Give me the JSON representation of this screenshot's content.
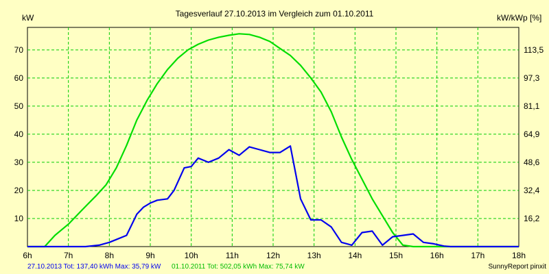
{
  "chart_data": {
    "type": "line",
    "title": "Tagesverlauf 27.10.2013 im Vergleich zum 01.10.2011",
    "ylabel_left": "kW",
    "ylabel_right": "kW/kWp [%]",
    "x_unit": "hour",
    "xlim": [
      6,
      18
    ],
    "ylim": [
      0,
      78
    ],
    "grid": true,
    "x_ticks": [
      6,
      7,
      8,
      9,
      10,
      11,
      12,
      13,
      14,
      15,
      16,
      17,
      18
    ],
    "x_tick_labels": [
      "6h",
      "7h",
      "8h",
      "9h",
      "10h",
      "11h",
      "12h",
      "13h",
      "14h",
      "15h",
      "16h",
      "17h",
      "18h"
    ],
    "y_ticks_left": [
      10,
      20,
      30,
      40,
      50,
      60,
      70
    ],
    "y_tick_labels_left": [
      "10",
      "20",
      "30",
      "40",
      "50",
      "60",
      "70"
    ],
    "y_ticks_right_at": [
      10,
      20,
      30,
      40,
      50,
      60,
      70
    ],
    "y_tick_labels_right": [
      "16,2",
      "32,4",
      "48,6",
      "64,9",
      "81,1",
      "97,3",
      "113,5"
    ],
    "series": [
      {
        "name": "27.10.2013",
        "color": "#0000ee",
        "x": [
          6,
          6.83,
          7.0,
          7.42,
          7.75,
          8.0,
          8.17,
          8.42,
          8.67,
          8.83,
          9.0,
          9.17,
          9.42,
          9.58,
          9.83,
          10.0,
          10.17,
          10.42,
          10.67,
          10.92,
          11.17,
          11.42,
          11.67,
          11.92,
          12.17,
          12.42,
          12.67,
          12.92,
          13.17,
          13.42,
          13.67,
          13.92,
          14.17,
          14.42,
          14.67,
          14.92,
          15.17,
          15.42,
          15.67,
          15.92,
          16.17,
          16.33,
          18
        ],
        "y": [
          0,
          0,
          0,
          0,
          0.5,
          1.5,
          2.5,
          4,
          11.5,
          14,
          15.5,
          16.5,
          17,
          20,
          28,
          28.5,
          31.5,
          30,
          31.5,
          34.5,
          32.5,
          35.5,
          34.5,
          33.5,
          33.5,
          35.79,
          17,
          9.5,
          9.5,
          7,
          1.5,
          0.5,
          5,
          5.5,
          0.5,
          3.5,
          4,
          4.5,
          1.5,
          1.0,
          0.2,
          0,
          0
        ]
      },
      {
        "name": "01.10.2011",
        "color": "#00dd00",
        "x": [
          6,
          6.42,
          6.67,
          7.0,
          7.33,
          7.67,
          7.92,
          8.17,
          8.42,
          8.67,
          8.92,
          9.17,
          9.42,
          9.67,
          9.92,
          10.17,
          10.42,
          10.67,
          10.92,
          11.17,
          11.42,
          11.67,
          11.92,
          12.17,
          12.42,
          12.67,
          12.92,
          13.17,
          13.42,
          13.67,
          13.92,
          14.17,
          14.42,
          14.67,
          14.92,
          15.17,
          15.42,
          15.67,
          15.92,
          16.17,
          16.42,
          16.67,
          16.92,
          17.17,
          17.42,
          17.67,
          18
        ],
        "y": [
          0,
          0,
          4,
          8,
          13,
          18,
          22,
          28,
          36,
          45,
          52,
          58,
          63,
          67,
          70,
          72,
          73.5,
          74.5,
          75.2,
          75.74,
          75.5,
          74.5,
          73,
          70.5,
          68,
          64.5,
          60,
          55,
          48,
          39,
          31,
          24,
          17,
          11,
          5,
          0.5,
          0,
          0,
          0,
          0,
          0,
          0,
          0,
          0,
          0,
          0,
          0
        ]
      }
    ],
    "legend_1": "27.10.2013 Tot: 137,40 kWh Max: 35,79 kW",
    "legend_2": "01.10.2011 Tot: 502,05 kWh Max: 75,74 kW",
    "footer": "SunnyReport pinxit"
  }
}
